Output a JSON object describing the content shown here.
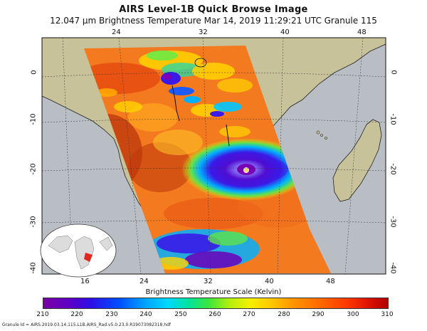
{
  "title": "AIRS Level-1B Quick Browse Image",
  "subtitle": "12.047 µm Brightness Temperature    Mar 14, 2019 11:29:21 UTC   Granule 115",
  "lon_ticks_top": [
    "24",
    "32",
    "40",
    "48"
  ],
  "lon_ticks_bottom": [
    "16",
    "24",
    "32",
    "40",
    "48"
  ],
  "lat_ticks_left": [
    "0",
    "-10",
    "-20",
    "-30",
    "-40"
  ],
  "lat_ticks_right": [
    "0",
    "-10",
    "-20",
    "-30",
    "-40"
  ],
  "colorbar": {
    "title": "Brightness Temperature Scale (Kelvin)",
    "labels": [
      "210",
      "220",
      "230",
      "240",
      "250",
      "260",
      "270",
      "280",
      "290",
      "300",
      "310"
    ]
  },
  "granule_id": "Granule Id = AIRS.2019.03.14.115.L1B.AIRS_Rad.v5.0.23.0.R19073082318.hdf",
  "colors": {
    "land": "#c7c29a",
    "ocean": "#b9bec4",
    "swath_base": "#f37a1e"
  }
}
